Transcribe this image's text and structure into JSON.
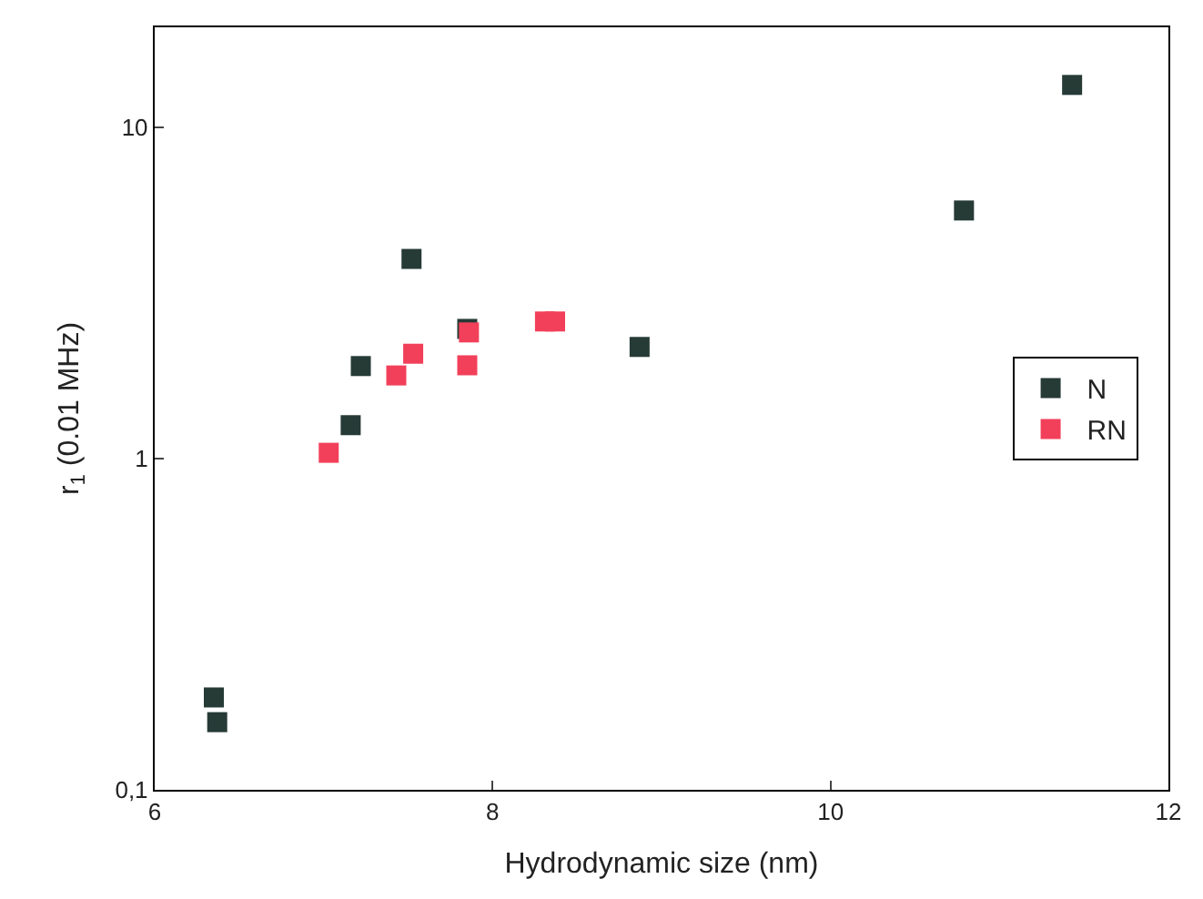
{
  "chart_data": {
    "type": "scatter",
    "xlabel": "Hydrodynamic size (nm)",
    "ylabel": "r$_{1}$ (0.01 MHz)",
    "xlim": [
      6,
      12
    ],
    "xticks": [
      6,
      8,
      10,
      12
    ],
    "ylim": [
      0.1,
      20
    ],
    "yticks": [
      {
        "value": 0.1,
        "label": "0,1"
      },
      1,
      10
    ],
    "log": "y",
    "marker": "square",
    "legend": "right",
    "series": [
      {
        "name": "N",
        "color": "#263a36",
        "x": [
          6.35,
          6.37,
          7.16,
          7.22,
          7.52,
          7.85,
          8.87,
          10.79,
          11.43
        ],
        "values": [
          0.19,
          0.16,
          1.26,
          1.9,
          4.0,
          2.46,
          2.17,
          5.6,
          13.4
        ]
      },
      {
        "name": "RN",
        "color": "#f2405a",
        "x": [
          7.03,
          7.43,
          7.53,
          7.85,
          7.86,
          8.31,
          8.37
        ],
        "values": [
          1.04,
          1.78,
          2.07,
          1.91,
          2.4,
          2.59,
          2.59
        ]
      }
    ]
  }
}
